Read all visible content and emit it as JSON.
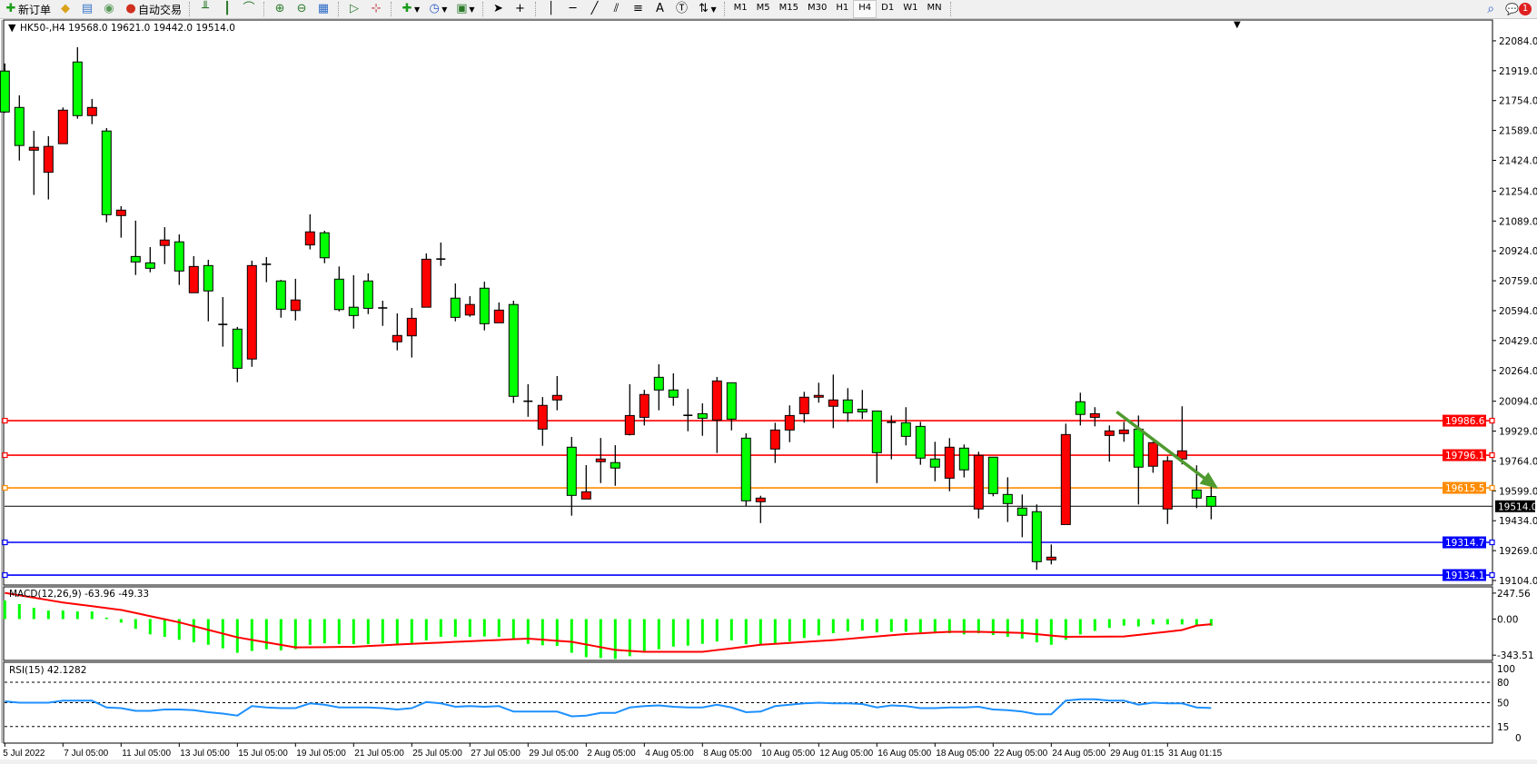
{
  "toolbar": {
    "new_order_label": "新订单",
    "auto_trading_label": "自动交易",
    "timeframes": [
      "M1",
      "M5",
      "M15",
      "M30",
      "H1",
      "H4",
      "D1",
      "W1",
      "MN"
    ],
    "active_timeframe": "H4",
    "notification_count": "1"
  },
  "chart": {
    "header": "HK50-,H4  19568.0 19621.0 19442.0 19514.0",
    "colors": {
      "bear": "#00ff00",
      "bull": "#ff0000",
      "arrow": "#4f9a2f"
    },
    "price_ylim": [
      19079,
      22199
    ],
    "price_ticks": [
      "22084.0",
      "21919.0",
      "21754.0",
      "21589.0",
      "21424.0",
      "21254.0",
      "21089.0",
      "20924.0",
      "20759.0",
      "20594.0",
      "20429.0",
      "20264.0",
      "20094.0",
      "19929.0",
      "19764.0",
      "19599.0",
      "19434.0",
      "19269.0",
      "19104.0"
    ],
    "levels": [
      {
        "value": 19986.6,
        "label": "19986.6",
        "color": "#ff0000"
      },
      {
        "value": 19796.1,
        "label": "19796.1",
        "color": "#ff0000"
      },
      {
        "value": 19615.5,
        "label": "19615.5",
        "color": "#ff8c00"
      },
      {
        "value": 19314.7,
        "label": "19314.7",
        "color": "#0000ff"
      },
      {
        "value": 19134.1,
        "label": "19134.1",
        "color": "#0000ff"
      }
    ],
    "current_price": {
      "value": 19514.0,
      "label": "19514.0"
    },
    "arrow": {
      "from": [
        76.5,
        20035
      ],
      "to": [
        83.5,
        19610
      ]
    },
    "time_labels": [
      {
        "i": 0,
        "t": "5 Jul 2022"
      },
      {
        "i": 4,
        "t": "7 Jul 05:00"
      },
      {
        "i": 8,
        "t": "11 Jul 05:00"
      },
      {
        "i": 12,
        "t": "13 Jul 05:00"
      },
      {
        "i": 16,
        "t": "15 Jul 05:00"
      },
      {
        "i": 20,
        "t": "19 Jul 05:00"
      },
      {
        "i": 24,
        "t": "21 Jul 05:00"
      },
      {
        "i": 28,
        "t": "25 Jul 05:00"
      },
      {
        "i": 32,
        "t": "27 Jul 05:00"
      },
      {
        "i": 36,
        "t": "29 Jul 05:00"
      },
      {
        "i": 40,
        "t": "2 Aug 05:00"
      },
      {
        "i": 44,
        "t": "4 Aug 05:00"
      },
      {
        "i": 48,
        "t": "8 Aug 05:00"
      },
      {
        "i": 52,
        "t": "10 Aug 05:00"
      },
      {
        "i": 56,
        "t": "12 Aug 05:00"
      },
      {
        "i": 60,
        "t": "16 Aug 05:00"
      },
      {
        "i": 64,
        "t": "18 Aug 05:00"
      },
      {
        "i": 68,
        "t": "22 Aug 05:00"
      },
      {
        "i": 72,
        "t": "24 Aug 05:00"
      },
      {
        "i": 76,
        "t": "29 Aug 01:15"
      },
      {
        "i": 80,
        "t": "31 Aug 01:15"
      }
    ]
  },
  "chart_data": {
    "type": "candlestick",
    "symbol": "HK50-",
    "timeframe": "H4",
    "ohlc_fields": [
      "open",
      "high",
      "low",
      "close"
    ],
    "candles": [
      [
        21917,
        21959,
        21686,
        21691
      ],
      [
        21716,
        21783,
        21423,
        21506
      ],
      [
        21480,
        21587,
        21233,
        21496
      ],
      [
        21358,
        21557,
        21208,
        21501
      ],
      [
        21516,
        21716,
        21516,
        21701
      ],
      [
        21967,
        22049,
        21654,
        21671
      ],
      [
        21671,
        21763,
        21624,
        21716
      ],
      [
        21586,
        21602,
        21082,
        21124
      ],
      [
        21119,
        21171,
        20997,
        21149
      ],
      [
        20893,
        21091,
        20791,
        20863
      ],
      [
        20858,
        20945,
        20806,
        20828
      ],
      [
        20954,
        21055,
        20851,
        20984
      ],
      [
        20974,
        21015,
        20736,
        20813
      ],
      [
        20693,
        20895,
        20693,
        20838
      ],
      [
        20843,
        20875,
        20535,
        20703
      ],
      [
        20515,
        20669,
        20395,
        20518
      ],
      [
        20492,
        20504,
        20199,
        20276
      ],
      [
        20327,
        20870,
        20284,
        20843
      ],
      [
        20847,
        20890,
        20751,
        20850
      ],
      [
        20758,
        20764,
        20555,
        20602
      ],
      [
        20595,
        20770,
        20540,
        20653
      ],
      [
        20957,
        21126,
        20932,
        21029
      ],
      [
        21024,
        21035,
        20856,
        20886
      ],
      [
        20768,
        20838,
        20590,
        20600
      ],
      [
        20613,
        20790,
        20495,
        20567
      ],
      [
        20758,
        20800,
        20575,
        20607
      ],
      [
        20606,
        20649,
        20510,
        20609
      ],
      [
        20422,
        20579,
        20375,
        20457
      ],
      [
        20455,
        20609,
        20335,
        20552
      ],
      [
        20613,
        20910,
        20613,
        20878
      ],
      [
        20876,
        20970,
        20841,
        20879
      ],
      [
        20663,
        20744,
        20535,
        20557
      ],
      [
        20570,
        20674,
        20560,
        20628
      ],
      [
        20718,
        20754,
        20485,
        20522
      ],
      [
        20527,
        20639,
        20527,
        20597
      ],
      [
        20628,
        20649,
        20084,
        20121
      ],
      [
        20091,
        20188,
        20008,
        20094
      ],
      [
        19940,
        20117,
        19848,
        20071
      ],
      [
        20101,
        20233,
        20044,
        20126
      ],
      [
        19840,
        19897,
        19462,
        19574
      ],
      [
        19554,
        19741,
        19554,
        19594
      ],
      [
        19760,
        19891,
        19642,
        19775
      ],
      [
        19755,
        19851,
        19627,
        19725
      ],
      [
        19910,
        20188,
        19905,
        20015
      ],
      [
        20005,
        20157,
        19960,
        20131
      ],
      [
        20226,
        20298,
        20044,
        20156
      ],
      [
        20156,
        20248,
        20069,
        20116
      ],
      [
        20013,
        20162,
        19928,
        20016
      ],
      [
        20025,
        20082,
        19903,
        20000
      ],
      [
        19990,
        20228,
        19808,
        20206
      ],
      [
        20196,
        20196,
        19933,
        19995
      ],
      [
        19890,
        19917,
        19514,
        19544
      ],
      [
        19539,
        19572,
        19421,
        19559
      ],
      [
        19830,
        19975,
        19753,
        19935
      ],
      [
        19935,
        20071,
        19868,
        20015
      ],
      [
        20025,
        20146,
        19975,
        20116
      ],
      [
        20116,
        20196,
        20086,
        20126
      ],
      [
        20066,
        20241,
        19945,
        20101
      ],
      [
        20101,
        20166,
        19980,
        20030
      ],
      [
        20050,
        20156,
        19995,
        20035
      ],
      [
        20040,
        20040,
        19642,
        19810
      ],
      [
        19975,
        20015,
        19773,
        19978
      ],
      [
        19975,
        20061,
        19850,
        19900
      ],
      [
        19955,
        19980,
        19743,
        19780
      ],
      [
        19775,
        19870,
        19652,
        19730
      ],
      [
        19669,
        19890,
        19597,
        19840
      ],
      [
        19835,
        19855,
        19673,
        19715
      ],
      [
        19499,
        19815,
        19447,
        19795
      ],
      [
        19785,
        19785,
        19569,
        19584
      ],
      [
        19579,
        19674,
        19427,
        19529
      ],
      [
        19504,
        19579,
        19343,
        19464
      ],
      [
        19484,
        19524,
        19163,
        19208
      ],
      [
        19218,
        19303,
        19193,
        19233
      ],
      [
        19413,
        19970,
        19413,
        19910
      ],
      [
        20091,
        20141,
        19960,
        20021
      ],
      [
        20005,
        20061,
        19955,
        20025
      ],
      [
        19905,
        19960,
        19760,
        19930
      ],
      [
        19915,
        19980,
        19870,
        19935
      ],
      [
        19940,
        20015,
        19524,
        19730
      ],
      [
        19735,
        19870,
        19699,
        19865
      ],
      [
        19499,
        19790,
        19416,
        19765
      ],
      [
        19775,
        20066,
        19745,
        19820
      ],
      [
        19604,
        19740,
        19504,
        19559
      ],
      [
        19568,
        19621,
        19442,
        19514
      ]
    ],
    "macd": {
      "label": "MACD(12,26,9) -63.96 -49.33",
      "ylim": [
        -394,
        307
      ],
      "ticks": [
        "247.56",
        "0.00",
        "-343.51"
      ],
      "tick_values": [
        247.56,
        0,
        -343.51
      ],
      "histogram_color": "#00ff00",
      "signal_color": "#ff0000",
      "histogram": [
        177,
        143,
        107,
        82,
        82,
        73,
        73,
        14,
        -34,
        -93,
        -146,
        -169,
        -197,
        -222,
        -245,
        -279,
        -321,
        -304,
        -287,
        -298,
        -287,
        -245,
        -231,
        -239,
        -239,
        -239,
        -231,
        -236,
        -231,
        -203,
        -169,
        -169,
        -169,
        -166,
        -169,
        -186,
        -236,
        -250,
        -256,
        -321,
        -363,
        -371,
        -380,
        -354,
        -307,
        -287,
        -262,
        -253,
        -236,
        -214,
        -203,
        -239,
        -245,
        -236,
        -214,
        -180,
        -155,
        -135,
        -118,
        -110,
        -127,
        -121,
        -121,
        -129,
        -121,
        -135,
        -146,
        -135,
        -152,
        -169,
        -186,
        -222,
        -245,
        -197,
        -146,
        -113,
        -84,
        -62,
        -70,
        -51,
        -51,
        -51,
        -62,
        -64
      ],
      "signal": [
        250,
        227,
        204,
        181,
        158,
        140,
        123,
        105,
        87,
        58,
        28,
        -1,
        -31,
        -67,
        -103,
        -138,
        -174,
        -198,
        -222,
        -246,
        -270,
        -268,
        -267,
        -265,
        -264,
        -257,
        -250,
        -243,
        -236,
        -230,
        -224,
        -217,
        -211,
        -205,
        -199,
        -192,
        -186,
        -196,
        -207,
        -217,
        -242,
        -268,
        -293,
        -303,
        -312,
        -312,
        -312,
        -312,
        -312,
        -295,
        -279,
        -262,
        -245,
        -236,
        -227,
        -218,
        -209,
        -200,
        -189,
        -177,
        -166,
        -154,
        -143,
        -136,
        -128,
        -121,
        -121,
        -121,
        -125,
        -128,
        -132,
        -144,
        -157,
        -169,
        -168,
        -168,
        -167,
        -166,
        -151,
        -135,
        -120,
        -104,
        -62,
        -49
      ]
    },
    "rsi": {
      "label": "RSI(15) 42.1282",
      "ylim": [
        -9.3,
        109.3
      ],
      "ticks": [
        "100",
        "80",
        "50",
        "15",
        "0"
      ],
      "tick_values": [
        100,
        80,
        50,
        15,
        0
      ],
      "levels": [
        80,
        50,
        15
      ],
      "color": "#1e90ff",
      "values": [
        52,
        50,
        50,
        50,
        53,
        53,
        53,
        43,
        42,
        38,
        38,
        40,
        40,
        39,
        36,
        34,
        31,
        45,
        43,
        42,
        42,
        49,
        47,
        43,
        43,
        43,
        42,
        40,
        42,
        51,
        49,
        44,
        45,
        44,
        45,
        37,
        37,
        37,
        37,
        30,
        31,
        35,
        35,
        43,
        45,
        46,
        44,
        43,
        43,
        47,
        43,
        36,
        37,
        45,
        47,
        49,
        50,
        49,
        49,
        48,
        43,
        46,
        45,
        42,
        42,
        43,
        43,
        44,
        40,
        39,
        37,
        33,
        33,
        53,
        55,
        55,
        53,
        53,
        47,
        50,
        49,
        49,
        43,
        42.13
      ]
    }
  }
}
